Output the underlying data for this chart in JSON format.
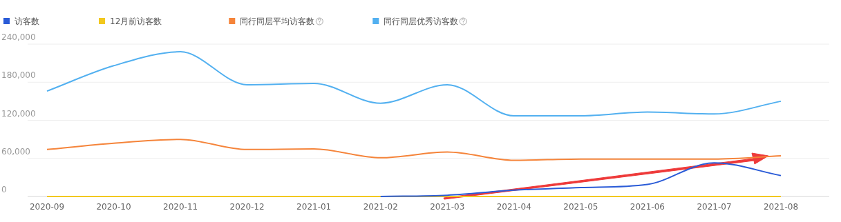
{
  "chart_data": {
    "type": "line",
    "categories": [
      "2020-09",
      "2020-10",
      "2020-11",
      "2020-12",
      "2021-01",
      "2021-02",
      "2021-03",
      "2021-04",
      "2021-05",
      "2021-06",
      "2021-07",
      "2021-08"
    ],
    "series": [
      {
        "name": "访客数",
        "color": "#2a5bd7",
        "values": [
          null,
          null,
          null,
          null,
          null,
          0,
          2000,
          10000,
          14000,
          19000,
          53000,
          33000
        ]
      },
      {
        "name": "12月前访客数",
        "color": "#f2c81e",
        "values": [
          0,
          0,
          0,
          0,
          0,
          0,
          0,
          0,
          0,
          0,
          0,
          0
        ]
      },
      {
        "name": "同行同层平均访客数",
        "color": "#f5843a",
        "values": [
          74000,
          84000,
          90000,
          74000,
          75000,
          61000,
          70000,
          57000,
          59000,
          59000,
          59000,
          64000
        ]
      },
      {
        "name": "同行同层优秀访客数",
        "color": "#52b0f0",
        "values": [
          166000,
          206000,
          228000,
          176000,
          178000,
          147000,
          176000,
          127000,
          127000,
          133000,
          130000,
          150000
        ]
      }
    ],
    "ylim": [
      0,
      240000
    ],
    "yticks": [
      0,
      {
        "value": 60000,
        "label": "60,000"
      },
      {
        "value": 120000,
        "label": "120,000"
      },
      {
        "value": 180000,
        "label": "180,000"
      },
      {
        "value": 240000,
        "label": "240,000"
      }
    ],
    "grid": "y",
    "legend": "top left",
    "marker": "none",
    "line_style": "solid"
  }
}
